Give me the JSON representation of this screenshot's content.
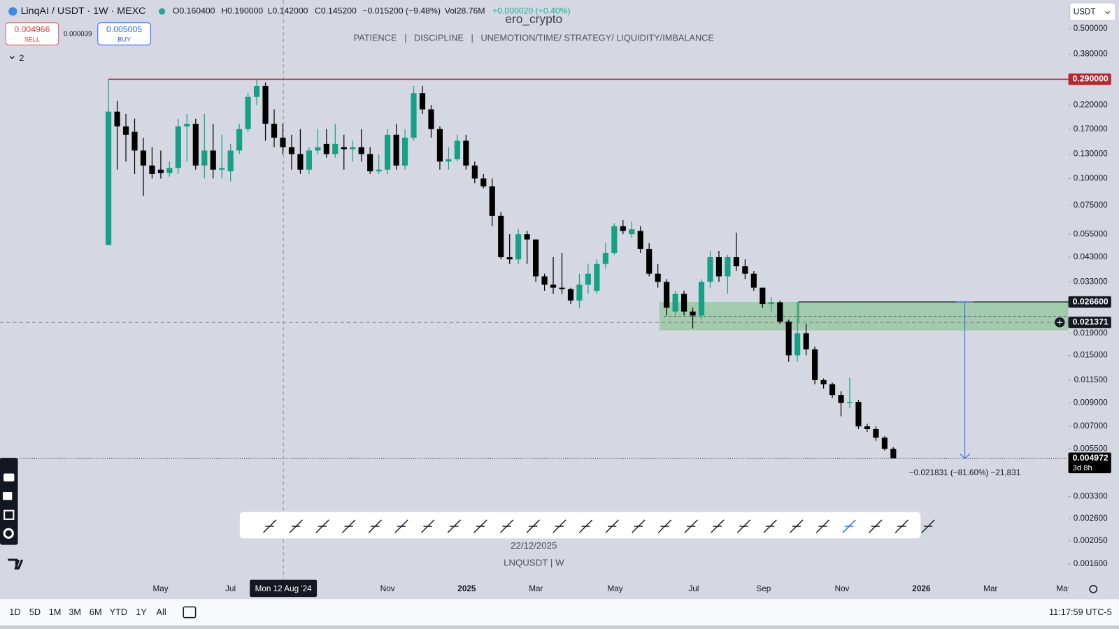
{
  "header": {
    "symbol": "LinqAI / USDT · 1W · MEXC",
    "open": "O0.160400",
    "high": "H0.190000",
    "low": "L0.142000",
    "close": "C0.145200",
    "change": "−0.015200 (−9.48%)",
    "volume": "Vol28.76M",
    "volume_change": "+0.000020 (+0.40%)"
  },
  "order": {
    "sell_price": "0.004966",
    "sell_label": "SELL",
    "spread": "0.000039",
    "buy_price": "0.005005",
    "buy_label": "BUY"
  },
  "indicator_count": "2",
  "currency": "USDT",
  "chart_data": {
    "type": "candlestick",
    "title": "ero_crypto",
    "subtitle": "PATIENCE   |   DISCIPLINE   |   UNEMOTION/TIME/ STRATEGY/ LIQUIDITY/IMBALANCE",
    "log_scale": true,
    "ylim": [
      0.00136,
      0.679
    ],
    "yticks": [
      {
        "value": 0.5,
        "label": "0.500000"
      },
      {
        "value": 0.38,
        "label": "0.380000"
      },
      {
        "value": 0.22,
        "label": "0.220000"
      },
      {
        "value": 0.17,
        "label": "0.170000"
      },
      {
        "value": 0.13,
        "label": "0.130000"
      },
      {
        "value": 0.1,
        "label": "0.100000"
      },
      {
        "value": 0.075,
        "label": "0.075000"
      },
      {
        "value": 0.055,
        "label": "0.055000"
      },
      {
        "value": 0.043,
        "label": "0.043000"
      },
      {
        "value": 0.033,
        "label": "0.033000"
      },
      {
        "value": 0.019,
        "label": "0.019000"
      },
      {
        "value": 0.015,
        "label": "0.015000"
      },
      {
        "value": 0.0115,
        "label": "0.011500"
      },
      {
        "value": 0.009,
        "label": "0.009000"
      },
      {
        "value": 0.007,
        "label": "0.007000"
      },
      {
        "value": 0.0055,
        "label": "0.005500"
      },
      {
        "value": 0.0033,
        "label": "0.003300"
      },
      {
        "value": 0.0026,
        "label": "0.002600"
      },
      {
        "value": 0.00205,
        "label": "0.002050"
      },
      {
        "value": 0.0016,
        "label": "0.001600"
      }
    ],
    "up_color": "#16a085",
    "down_color": "#000000",
    "open": [
      0.049,
      0.205,
      0.175,
      0.165,
      0.135,
      0.115,
      0.11,
      0.106,
      0.112,
      0.175,
      0.18,
      0.115,
      0.135,
      0.11,
      0.108,
      0.135,
      0.17,
      0.24,
      0.27,
      0.18,
      0.155,
      0.14,
      0.13,
      0.11,
      0.135,
      0.145,
      0.13,
      0.14,
      0.137,
      0.14,
      0.13,
      0.108,
      0.11,
      0.16,
      0.115,
      0.155,
      0.25,
      0.21,
      0.17,
      0.12,
      0.123,
      0.15,
      0.115,
      0.1,
      0.092,
      0.067,
      0.043,
      0.042,
      0.055,
      0.052,
      0.035,
      0.032,
      0.031,
      0.0305,
      0.027,
      0.032,
      0.03,
      0.04,
      0.045,
      0.06,
      0.055,
      0.057,
      0.047,
      0.036,
      0.033,
      0.024,
      0.029,
      0.024,
      0.023,
      0.033,
      0.043,
      0.035,
      0.043,
      0.039,
      0.036,
      0.031,
      0.026,
      0.0265,
      0.0215,
      0.015,
      0.019,
      0.016,
      0.0115,
      0.011,
      0.0098,
      0.009,
      0.0091,
      0.007,
      0.0068,
      0.0062,
      0.0055
    ],
    "high": [
      0.29,
      0.23,
      0.2,
      0.19,
      0.155,
      0.14,
      0.135,
      0.12,
      0.19,
      0.2,
      0.19,
      0.2,
      0.18,
      0.16,
      0.145,
      0.18,
      0.25,
      0.29,
      0.28,
      0.21,
      0.18,
      0.16,
      0.17,
      0.14,
      0.17,
      0.17,
      0.18,
      0.16,
      0.15,
      0.17,
      0.14,
      0.13,
      0.17,
      0.18,
      0.17,
      0.27,
      0.27,
      0.22,
      0.175,
      0.14,
      0.16,
      0.16,
      0.12,
      0.105,
      0.1,
      0.07,
      0.055,
      0.058,
      0.057,
      0.052,
      0.036,
      0.043,
      0.045,
      0.031,
      0.036,
      0.04,
      0.042,
      0.05,
      0.062,
      0.064,
      0.063,
      0.06,
      0.05,
      0.04,
      0.034,
      0.03,
      0.03,
      0.025,
      0.034,
      0.046,
      0.046,
      0.044,
      0.056,
      0.042,
      0.037,
      0.031,
      0.028,
      0.027,
      0.022,
      0.0266,
      0.021,
      0.0165,
      0.0117,
      0.0112,
      0.0102,
      0.0118,
      0.0093,
      0.0072,
      0.007,
      0.0063,
      0.0056
    ],
    "low": [
      0.049,
      0.11,
      0.12,
      0.105,
      0.083,
      0.1,
      0.1,
      0.102,
      0.105,
      0.12,
      0.11,
      0.1,
      0.1,
      0.1,
      0.097,
      0.13,
      0.165,
      0.22,
      0.15,
      0.14,
      0.13,
      0.11,
      0.105,
      0.105,
      0.13,
      0.125,
      0.125,
      0.11,
      0.12,
      0.12,
      0.105,
      0.105,
      0.105,
      0.11,
      0.11,
      0.15,
      0.2,
      0.155,
      0.11,
      0.11,
      0.12,
      0.11,
      0.095,
      0.09,
      0.06,
      0.042,
      0.04,
      0.04,
      0.04,
      0.033,
      0.03,
      0.029,
      0.029,
      0.026,
      0.025,
      0.029,
      0.029,
      0.038,
      0.044,
      0.055,
      0.053,
      0.045,
      0.035,
      0.031,
      0.023,
      0.023,
      0.023,
      0.02,
      0.022,
      0.031,
      0.033,
      0.029,
      0.037,
      0.034,
      0.03,
      0.025,
      0.024,
      0.021,
      0.014,
      0.014,
      0.015,
      0.011,
      0.0105,
      0.0095,
      0.0078,
      0.0085,
      0.0068,
      0.0066,
      0.006,
      0.0054,
      0.00497
    ],
    "close": [
      0.205,
      0.175,
      0.16,
      0.135,
      0.115,
      0.105,
      0.106,
      0.112,
      0.175,
      0.18,
      0.115,
      0.135,
      0.11,
      0.112,
      0.135,
      0.17,
      0.24,
      0.27,
      0.18,
      0.155,
      0.14,
      0.13,
      0.11,
      0.135,
      0.14,
      0.13,
      0.145,
      0.137,
      0.14,
      0.13,
      0.108,
      0.11,
      0.16,
      0.115,
      0.155,
      0.25,
      0.21,
      0.17,
      0.12,
      0.123,
      0.15,
      0.115,
      0.1,
      0.092,
      0.067,
      0.043,
      0.042,
      0.055,
      0.052,
      0.035,
      0.032,
      0.031,
      0.0305,
      0.027,
      0.032,
      0.036,
      0.04,
      0.045,
      0.06,
      0.057,
      0.058,
      0.047,
      0.036,
      0.033,
      0.025,
      0.029,
      0.024,
      0.023,
      0.033,
      0.043,
      0.035,
      0.043,
      0.039,
      0.036,
      0.031,
      0.026,
      0.0265,
      0.0215,
      0.015,
      0.019,
      0.016,
      0.0115,
      0.011,
      0.0098,
      0.009,
      0.0091,
      0.007,
      0.0068,
      0.0062,
      0.0055,
      0.004972
    ],
    "x_axis_labels": [
      "May",
      "Jul",
      "Nov",
      "2025",
      "Mar",
      "May",
      "Jul",
      "Sep",
      "Nov",
      "2026",
      "Mar",
      "May"
    ],
    "crosshair_x_label": "Mon 12 Aug '24",
    "crosshair_y": {
      "value": 0.021371,
      "label": "0.021371"
    },
    "resistance": {
      "value": 0.29,
      "label": "0.290000",
      "color": "#b22833"
    },
    "zone": {
      "top": {
        "value": 0.0266,
        "label": "0.026600"
      },
      "bottom": 0.0196,
      "color": "#8fc79a"
    },
    "last_price": {
      "value": 0.004972,
      "label": "0.004972",
      "countdown": "3d 8h"
    },
    "measure_label": "−0.021831 (−81.60%) −21,831",
    "measure_color": "#2962ff",
    "watermark_date": "22/12/2025",
    "watermark_symbol": "LNQUSDT | W"
  },
  "timeframes": [
    "1D",
    "5D",
    "1M",
    "3M",
    "6M",
    "YTD",
    "1Y",
    "All"
  ],
  "clock": "11:17:59 UTC-5"
}
